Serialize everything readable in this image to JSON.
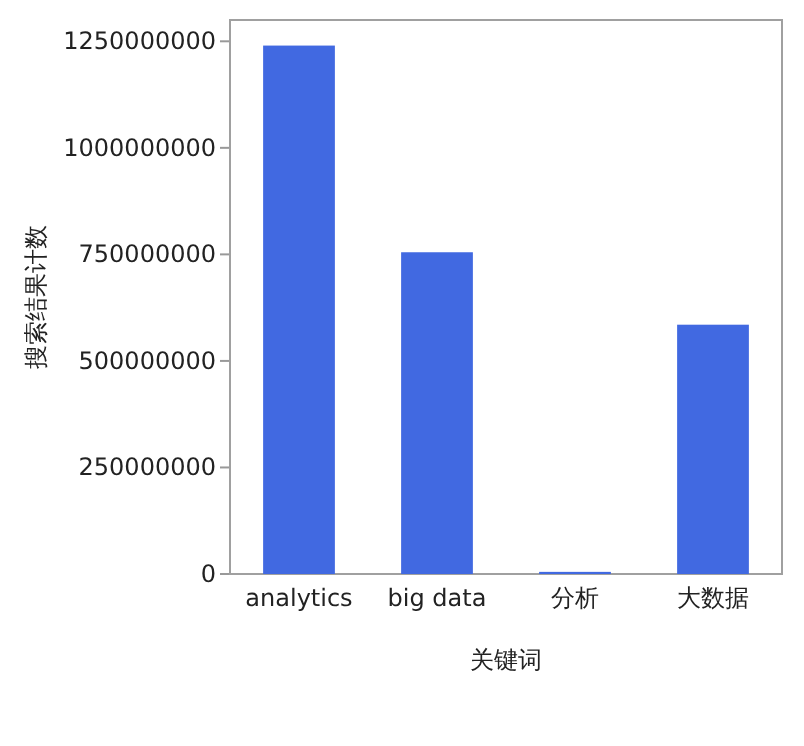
{
  "chart_data": {
    "type": "bar",
    "xlabel": "关键词",
    "ylabel": "搜索结果计数",
    "categories": [
      "analytics",
      "big data",
      "分析",
      "大数据"
    ],
    "values": [
      1240000000,
      755000000,
      5000000,
      585000000
    ],
    "color": "#4169e1",
    "ylim": [
      0,
      1300000000
    ],
    "yticks": [
      0,
      250000000,
      500000000,
      750000000,
      1000000000,
      1250000000
    ],
    "grid": false
  }
}
